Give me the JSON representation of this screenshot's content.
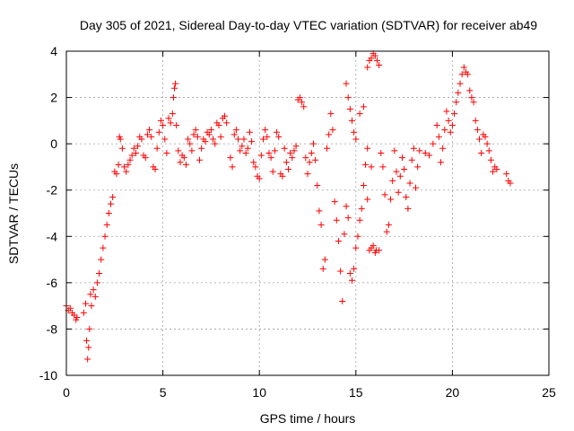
{
  "chart_data": {
    "type": "scatter",
    "title": "Day 305 of 2021, Sidereal Day-to-day VTEC variation (SDTVAR) for receiver ab49",
    "xlabel": "GPS time / hours",
    "ylabel": "SDTVAR / TECUs",
    "xlim": [
      0,
      25
    ],
    "ylim": [
      -10,
      4
    ],
    "xticks": [
      0,
      5,
      10,
      15,
      20,
      25
    ],
    "yticks": [
      -10,
      -8,
      -6,
      -4,
      -2,
      0,
      2,
      4
    ],
    "grid": true,
    "marker": "+",
    "color": "#ff0000",
    "series": [
      {
        "name": "SDTVAR",
        "points": [
          [
            0.0,
            -7.0
          ],
          [
            0.1,
            -7.2
          ],
          [
            0.2,
            -7.1
          ],
          [
            0.3,
            -7.3
          ],
          [
            0.4,
            -7.4
          ],
          [
            0.5,
            -7.6
          ],
          [
            0.55,
            -7.5
          ],
          [
            0.9,
            -7.3
          ],
          [
            1.0,
            -6.9
          ],
          [
            1.05,
            -8.5
          ],
          [
            1.1,
            -9.3
          ],
          [
            1.15,
            -8.8
          ],
          [
            1.2,
            -8.0
          ],
          [
            1.25,
            -6.5
          ],
          [
            1.3,
            -7.0
          ],
          [
            1.4,
            -6.3
          ],
          [
            1.5,
            -6.6
          ],
          [
            1.6,
            -6.0
          ],
          [
            1.7,
            -5.6
          ],
          [
            1.8,
            -5.0
          ],
          [
            1.9,
            -4.5
          ],
          [
            2.0,
            -4.0
          ],
          [
            2.1,
            -3.5
          ],
          [
            2.2,
            -3.0
          ],
          [
            2.3,
            -2.6
          ],
          [
            2.4,
            -2.3
          ],
          [
            2.5,
            -1.2
          ],
          [
            2.6,
            -1.3
          ],
          [
            2.7,
            -0.9
          ],
          [
            2.75,
            0.3
          ],
          [
            2.8,
            0.2
          ],
          [
            2.9,
            -0.2
          ],
          [
            3.0,
            -1.0
          ],
          [
            3.1,
            -1.2
          ],
          [
            3.2,
            -0.9
          ],
          [
            3.3,
            -0.7
          ],
          [
            3.4,
            -0.5
          ],
          [
            3.5,
            -0.2
          ],
          [
            3.6,
            -0.4
          ],
          [
            3.7,
            -0.1
          ],
          [
            3.8,
            0.3
          ],
          [
            3.9,
            0.2
          ],
          [
            4.0,
            -0.5
          ],
          [
            4.1,
            -0.6
          ],
          [
            4.2,
            0.4
          ],
          [
            4.3,
            0.6
          ],
          [
            4.4,
            0.3
          ],
          [
            4.5,
            -1.0
          ],
          [
            4.6,
            -1.1
          ],
          [
            4.7,
            -0.2
          ],
          [
            4.8,
            0.5
          ],
          [
            4.9,
            1.0
          ],
          [
            5.0,
            0.8
          ],
          [
            5.1,
            0.2
          ],
          [
            5.2,
            -0.4
          ],
          [
            5.3,
            1.1
          ],
          [
            5.4,
            0.9
          ],
          [
            5.5,
            1.3
          ],
          [
            5.55,
            2.0
          ],
          [
            5.6,
            2.4
          ],
          [
            5.65,
            2.6
          ],
          [
            5.7,
            0.8
          ],
          [
            5.8,
            -0.3
          ],
          [
            5.9,
            -0.8
          ],
          [
            6.0,
            -0.5
          ],
          [
            6.1,
            -0.6
          ],
          [
            6.2,
            -0.9
          ],
          [
            6.3,
            0.2
          ],
          [
            6.4,
            0.0
          ],
          [
            6.5,
            -0.3
          ],
          [
            6.6,
            0.4
          ],
          [
            6.7,
            0.6
          ],
          [
            6.8,
            0.3
          ],
          [
            6.9,
            -0.7
          ],
          [
            7.0,
            -0.2
          ],
          [
            7.1,
            0.2
          ],
          [
            7.2,
            0.1
          ],
          [
            7.3,
            0.5
          ],
          [
            7.4,
            0.4
          ],
          [
            7.5,
            0.6
          ],
          [
            7.6,
            0.2
          ],
          [
            7.7,
            0.0
          ],
          [
            7.8,
            0.9
          ],
          [
            7.9,
            0.8
          ],
          [
            8.0,
            0.3
          ],
          [
            8.1,
            1.1
          ],
          [
            8.2,
            1.2
          ],
          [
            8.3,
            0.9
          ],
          [
            8.5,
            -0.6
          ],
          [
            8.6,
            -1.0
          ],
          [
            8.7,
            0.4
          ],
          [
            8.8,
            0.6
          ],
          [
            8.9,
            0.2
          ],
          [
            9.0,
            -0.3
          ],
          [
            9.1,
            -0.1
          ],
          [
            9.2,
            0.2
          ],
          [
            9.3,
            -0.4
          ],
          [
            9.4,
            -0.2
          ],
          [
            9.5,
            0.5
          ],
          [
            9.6,
            0.1
          ],
          [
            9.7,
            -0.8
          ],
          [
            9.8,
            -1.0
          ],
          [
            9.9,
            -1.4
          ],
          [
            10.0,
            -1.5
          ],
          [
            10.1,
            -0.5
          ],
          [
            10.2,
            0.2
          ],
          [
            10.3,
            0.6
          ],
          [
            10.4,
            0.3
          ],
          [
            10.5,
            -0.4
          ],
          [
            10.6,
            -0.6
          ],
          [
            10.7,
            -1.2
          ],
          [
            10.8,
            -0.3
          ],
          [
            10.9,
            0.5
          ],
          [
            11.0,
            0.3
          ],
          [
            11.1,
            -1.3
          ],
          [
            11.2,
            -1.4
          ],
          [
            11.3,
            -0.2
          ],
          [
            11.4,
            -0.8
          ],
          [
            11.5,
            -1.1
          ],
          [
            11.6,
            -0.4
          ],
          [
            11.7,
            -0.6
          ],
          [
            11.8,
            -0.3
          ],
          [
            11.9,
            -0.1
          ],
          [
            12.0,
            1.9
          ],
          [
            12.1,
            2.0
          ],
          [
            12.2,
            1.8
          ],
          [
            12.3,
            1.6
          ],
          [
            12.4,
            -0.6
          ],
          [
            12.5,
            -1.3
          ],
          [
            12.6,
            -0.8
          ],
          [
            12.7,
            -0.4
          ],
          [
            12.8,
            0.0
          ],
          [
            12.9,
            -0.7
          ],
          [
            13.0,
            -1.8
          ],
          [
            13.1,
            -2.9
          ],
          [
            13.2,
            -3.5
          ],
          [
            13.3,
            -5.4
          ],
          [
            13.4,
            -5.0
          ],
          [
            13.5,
            -0.2
          ],
          [
            13.6,
            0.4
          ],
          [
            13.7,
            1.3
          ],
          [
            13.8,
            0.6
          ],
          [
            13.9,
            -2.5
          ],
          [
            14.0,
            -3.3
          ],
          [
            14.1,
            -4.2
          ],
          [
            14.2,
            -5.5
          ],
          [
            14.3,
            -6.8
          ],
          [
            14.4,
            -3.9
          ],
          [
            14.5,
            -2.7
          ],
          [
            14.6,
            -3.2
          ],
          [
            14.7,
            -5.6
          ],
          [
            14.8,
            -5.9
          ],
          [
            14.9,
            -5.4
          ],
          [
            15.0,
            -4.5
          ],
          [
            15.1,
            -4.0
          ],
          [
            15.2,
            -3.3
          ],
          [
            15.3,
            -2.8
          ],
          [
            15.4,
            -1.8
          ],
          [
            15.5,
            -0.9
          ],
          [
            15.6,
            -2.4
          ],
          [
            15.7,
            -4.6
          ],
          [
            15.8,
            -4.5
          ],
          [
            15.9,
            -4.4
          ],
          [
            16.0,
            -4.7
          ],
          [
            16.05,
            -4.6
          ],
          [
            16.2,
            -4.6
          ],
          [
            14.5,
            2.6
          ],
          [
            14.6,
            2.0
          ],
          [
            14.7,
            1.5
          ],
          [
            14.8,
            1.0
          ],
          [
            14.9,
            0.5
          ],
          [
            15.0,
            0.2
          ],
          [
            15.2,
            1.3
          ],
          [
            15.4,
            1.6
          ],
          [
            15.6,
            -0.2
          ],
          [
            15.8,
            -1.0
          ],
          [
            15.6,
            3.3
          ],
          [
            15.7,
            3.6
          ],
          [
            15.8,
            3.7
          ],
          [
            15.9,
            3.9
          ],
          [
            16.0,
            3.8
          ],
          [
            16.1,
            3.6
          ],
          [
            16.2,
            3.4
          ],
          [
            16.3,
            -0.4
          ],
          [
            16.4,
            -1.0
          ],
          [
            16.5,
            -2.2
          ],
          [
            16.6,
            -3.8
          ],
          [
            16.7,
            -3.5
          ],
          [
            16.8,
            -2.4
          ],
          [
            16.9,
            -1.6
          ],
          [
            17.0,
            -0.3
          ],
          [
            17.1,
            -1.2
          ],
          [
            17.2,
            -2.1
          ],
          [
            17.3,
            -1.4
          ],
          [
            17.4,
            -0.6
          ],
          [
            17.5,
            -1.1
          ],
          [
            17.6,
            -2.3
          ],
          [
            17.7,
            -2.8
          ],
          [
            17.8,
            -1.7
          ],
          [
            17.9,
            -0.7
          ],
          [
            18.0,
            -0.2
          ],
          [
            18.1,
            -1.9
          ],
          [
            18.2,
            -1.0
          ],
          [
            18.3,
            -0.3
          ],
          [
            18.6,
            -0.4
          ],
          [
            18.8,
            -0.5
          ],
          [
            19.0,
            0.0
          ],
          [
            19.2,
            0.8
          ],
          [
            19.3,
            0.3
          ],
          [
            19.4,
            -0.8
          ],
          [
            19.5,
            -0.2
          ],
          [
            19.6,
            0.6
          ],
          [
            19.7,
            1.4
          ],
          [
            19.8,
            1.0
          ],
          [
            19.9,
            0.5
          ],
          [
            20.0,
            0.8
          ],
          [
            20.1,
            1.3
          ],
          [
            20.2,
            1.8
          ],
          [
            20.3,
            2.2
          ],
          [
            20.4,
            2.6
          ],
          [
            20.5,
            3.0
          ],
          [
            20.6,
            3.3
          ],
          [
            20.7,
            3.1
          ],
          [
            20.8,
            3.0
          ],
          [
            20.9,
            2.3
          ],
          [
            21.0,
            2.0
          ],
          [
            21.1,
            1.8
          ],
          [
            21.2,
            1.0
          ],
          [
            21.3,
            0.6
          ],
          [
            21.4,
            0.2
          ],
          [
            21.5,
            -0.4
          ],
          [
            21.6,
            0.4
          ],
          [
            21.7,
            0.3
          ],
          [
            21.8,
            0.0
          ],
          [
            21.9,
            -0.3
          ],
          [
            22.0,
            -0.7
          ],
          [
            22.1,
            -1.2
          ],
          [
            22.2,
            -1.0
          ],
          [
            22.3,
            -1.1
          ],
          [
            22.8,
            -1.3
          ],
          [
            22.9,
            -1.6
          ],
          [
            23.0,
            -1.7
          ]
        ]
      }
    ]
  }
}
